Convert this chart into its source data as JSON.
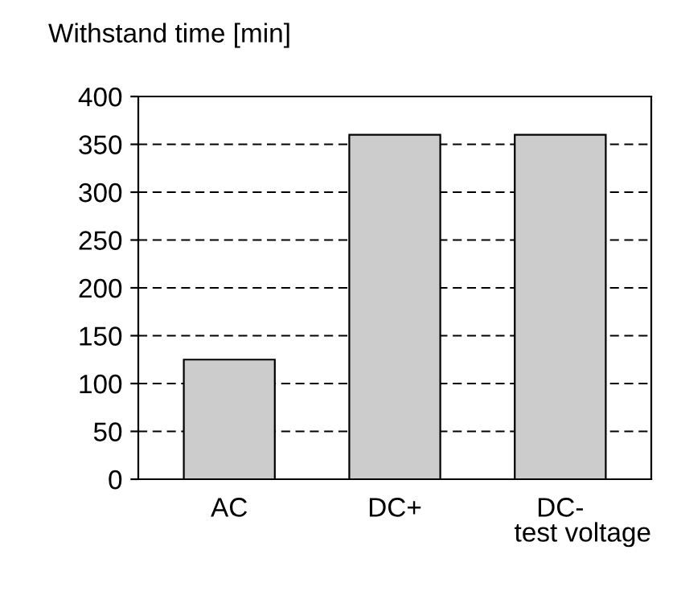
{
  "chart_data": {
    "type": "bar",
    "title": "Withstand time [min]",
    "xlabel": "test voltage",
    "categories": [
      "AC",
      "DC+",
      "DC-"
    ],
    "values": [
      125,
      360,
      360
    ],
    "color": "#cccccc",
    "ylim": [
      0,
      400
    ],
    "yticks": [
      0,
      50,
      100,
      150,
      200,
      250,
      300,
      350,
      400
    ],
    "grid": "y",
    "line_style": "dashed"
  }
}
